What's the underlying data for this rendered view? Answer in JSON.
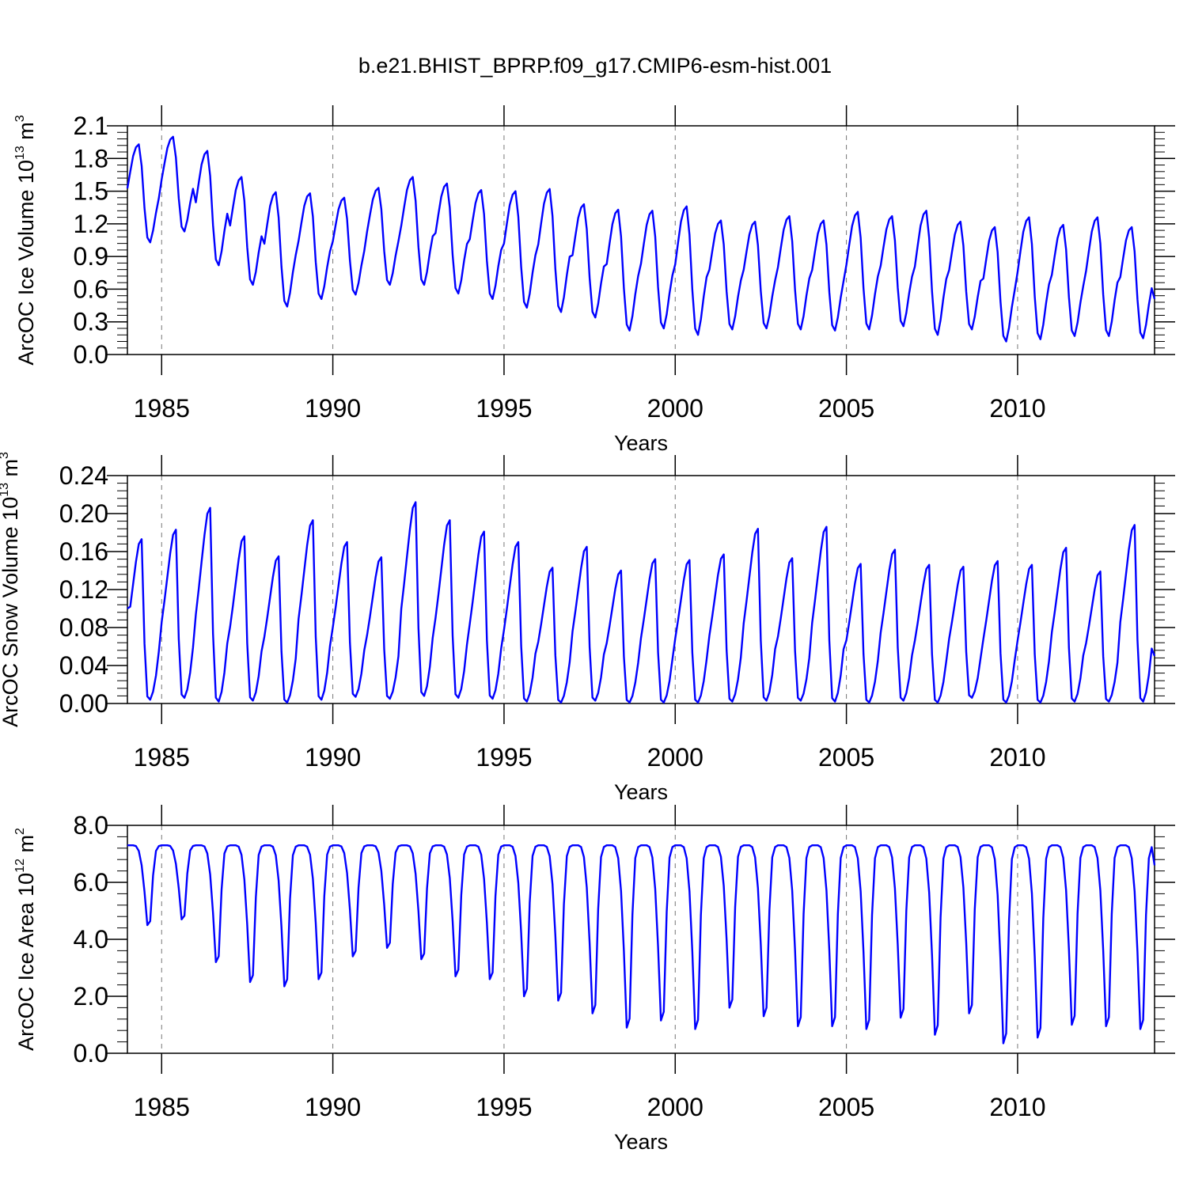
{
  "title": "b.e21.BHIST_BPRP.f09_g17.CMIP6-esm-hist.001",
  "chart_data": [
    {
      "type": "line",
      "name": "ice-volume",
      "title": "b.e21.BHIST_BPRP.f09_g17.CMIP6-esm-hist.001",
      "xlabel": "Years",
      "ylabel": "ArcOC Ice Volume 10",
      "ylabel_exp": "13",
      "ylabel_unit": "m",
      "ylabel_unit_exp": "3",
      "ylim": [
        0.0,
        2.1
      ],
      "yticks": [
        "0.0",
        "0.3",
        "0.6",
        "0.9",
        "1.2",
        "1.5",
        "1.8",
        "2.1"
      ],
      "xlim": [
        1984.0,
        2014.0
      ],
      "xticks": [
        "1985",
        "1990",
        "1995",
        "2000",
        "2005",
        "2010"
      ],
      "color": "#0000ff",
      "start_year": 1984,
      "months_per_year": 12,
      "annual_max": [
        1.93,
        2.0,
        1.87,
        1.63,
        1.49,
        1.48,
        1.44,
        1.53,
        1.63,
        1.57,
        1.51,
        1.5,
        1.52,
        1.38,
        1.33,
        1.32,
        1.36,
        1.23,
        1.22,
        1.27,
        1.23,
        1.31,
        1.27,
        1.32,
        1.22,
        1.17,
        1.26,
        1.19,
        1.26,
        1.17
      ],
      "annual_min": [
        1.03,
        1.13,
        0.82,
        0.64,
        0.44,
        0.51,
        0.55,
        0.64,
        0.64,
        0.56,
        0.51,
        0.43,
        0.39,
        0.34,
        0.22,
        0.24,
        0.18,
        0.23,
        0.24,
        0.23,
        0.22,
        0.23,
        0.26,
        0.18,
        0.23,
        0.12,
        0.14,
        0.17,
        0.17,
        0.15
      ],
      "end_value": 0.51
    },
    {
      "type": "line",
      "name": "snow-volume",
      "xlabel": "Years",
      "ylabel": "ArcOC Snow Volume 10",
      "ylabel_exp": "13",
      "ylabel_unit": "m",
      "ylabel_unit_exp": "3",
      "ylim": [
        0.0,
        0.24
      ],
      "yticks": [
        "0.00",
        "0.04",
        "0.08",
        "0.12",
        "0.16",
        "0.20",
        "0.24"
      ],
      "xlim": [
        1984.0,
        2014.0
      ],
      "xticks": [
        "1985",
        "1990",
        "1995",
        "2000",
        "2005",
        "2010"
      ],
      "color": "#0000ff",
      "start_year": 1984,
      "months_per_year": 12,
      "start_value": 0.1,
      "annual_max": [
        0.173,
        0.183,
        0.206,
        0.176,
        0.155,
        0.193,
        0.17,
        0.154,
        0.212,
        0.193,
        0.181,
        0.17,
        0.143,
        0.165,
        0.14,
        0.152,
        0.151,
        0.157,
        0.184,
        0.153,
        0.186,
        0.147,
        0.162,
        0.146,
        0.144,
        0.15,
        0.146,
        0.164,
        0.139,
        0.188
      ],
      "annual_min": [
        0.004,
        0.006,
        0.002,
        0.003,
        0.001,
        0.004,
        0.007,
        0.005,
        0.008,
        0.006,
        0.005,
        0.002,
        0.001,
        0.003,
        0.001,
        0.001,
        0.001,
        0.002,
        0.003,
        0.003,
        0.002,
        0.001,
        0.003,
        0.001,
        0.006,
        0.001,
        0.001,
        0.002,
        0.002,
        0.002
      ],
      "end_value": 0.05
    },
    {
      "type": "line",
      "name": "ice-area",
      "xlabel": "Years",
      "ylabel": "ArcOC Ice Area 10",
      "ylabel_exp": "12",
      "ylabel_unit": "m",
      "ylabel_unit_exp": "2",
      "ylim": [
        0.0,
        8.0
      ],
      "yticks": [
        "0.0",
        "2.0",
        "4.0",
        "6.0",
        "8.0"
      ],
      "xlim": [
        1984.0,
        2014.0
      ],
      "xticks": [
        "1985",
        "1990",
        "1995",
        "2000",
        "2005",
        "2010"
      ],
      "color": "#0000ff",
      "start_year": 1984,
      "months_per_year": 12,
      "annual_max": [
        7.3,
        7.3,
        7.3,
        7.3,
        7.3,
        7.3,
        7.3,
        7.3,
        7.3,
        7.3,
        7.3,
        7.3,
        7.3,
        7.3,
        7.3,
        7.3,
        7.3,
        7.3,
        7.3,
        7.3,
        7.3,
        7.3,
        7.3,
        7.3,
        7.3,
        7.3,
        7.3,
        7.3,
        7.3,
        7.3
      ],
      "annual_min": [
        4.5,
        4.7,
        3.2,
        2.5,
        2.35,
        2.6,
        3.4,
        3.7,
        3.3,
        2.7,
        2.6,
        2.0,
        1.85,
        1.4,
        0.9,
        1.15,
        0.85,
        1.6,
        1.3,
        0.95,
        0.95,
        0.85,
        1.25,
        0.65,
        1.4,
        0.35,
        0.55,
        1.0,
        0.95,
        0.85
      ],
      "end_value": 6.6
    }
  ]
}
